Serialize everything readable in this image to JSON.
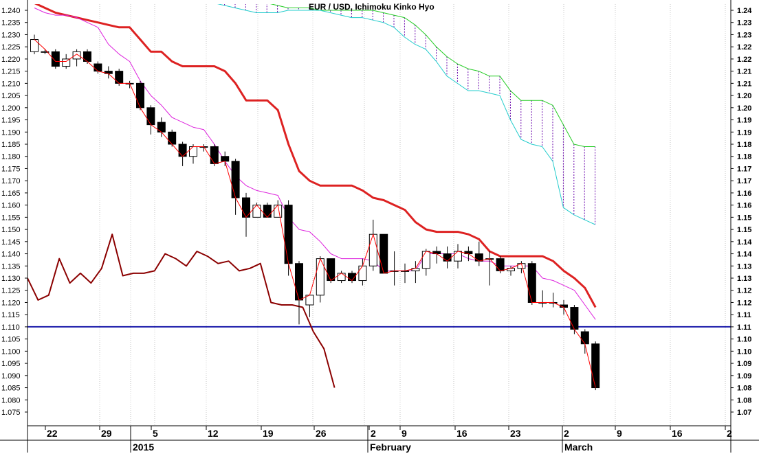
{
  "chart_data": {
    "type": "candlestick",
    "title": "EUR / USD, Ichimoku Kinko Hyo",
    "ylim": [
      1.07,
      1.245
    ],
    "y_left_ticks": [
      "1.075",
      "1.080",
      "1.085",
      "1.090",
      "1.095",
      "1.100",
      "1.105",
      "1.110",
      "1.115",
      "1.120",
      "1.125",
      "1.130",
      "1.135",
      "1.140",
      "1.145",
      "1.150",
      "1.155",
      "1.160",
      "1.165",
      "1.170",
      "1.175",
      "1.180",
      "1.185",
      "1.190",
      "1.195",
      "1.200",
      "1.205",
      "1.210",
      "1.215",
      "1.220",
      "1.225",
      "1.230",
      "1.235",
      "1.240"
    ],
    "y_right_ticks": [
      "1.07",
      "1.08",
      "1.08",
      "1.09",
      "1.09",
      "1.10",
      "1.10",
      "1.11",
      "1.11",
      "1.12",
      "1.12",
      "1.13",
      "1.13",
      "1.14",
      "1.14",
      "1.15",
      "1.15",
      "1.16",
      "1.16",
      "1.17",
      "1.17",
      "1.18",
      "1.18",
      "1.19",
      "1.19",
      "1.20",
      "1.20",
      "1.21",
      "1.21",
      "1.22",
      "1.22",
      "1.23",
      "1.23",
      "1.24"
    ],
    "x_ticks": [
      "22",
      "29",
      "5",
      "12",
      "19",
      "26",
      "2",
      "9",
      "16",
      "23",
      "2",
      "9",
      "16",
      "2"
    ],
    "x_month_labels": [
      "2015",
      "February",
      "March"
    ],
    "horizontal_line": 1.11,
    "grid": true,
    "candles": [
      {
        "o": 1.223,
        "h": 1.23,
        "l": 1.222,
        "c": 1.228
      },
      {
        "o": 1.223,
        "h": 1.224,
        "l": 1.222,
        "c": 1.223
      },
      {
        "o": 1.223,
        "h": 1.224,
        "l": 1.216,
        "c": 1.217
      },
      {
        "o": 1.217,
        "h": 1.222,
        "l": 1.216,
        "c": 1.22
      },
      {
        "o": 1.22,
        "h": 1.224,
        "l": 1.217,
        "c": 1.223
      },
      {
        "o": 1.223,
        "h": 1.224,
        "l": 1.218,
        "c": 1.219
      },
      {
        "o": 1.218,
        "h": 1.219,
        "l": 1.214,
        "c": 1.215
      },
      {
        "o": 1.215,
        "h": 1.217,
        "l": 1.212,
        "c": 1.214
      },
      {
        "o": 1.215,
        "h": 1.216,
        "l": 1.209,
        "c": 1.21
      },
      {
        "o": 1.21,
        "h": 1.211,
        "l": 1.208,
        "c": 1.21
      },
      {
        "o": 1.21,
        "h": 1.211,
        "l": 1.199,
        "c": 1.2
      },
      {
        "o": 1.2,
        "h": 1.201,
        "l": 1.189,
        "c": 1.193
      },
      {
        "o": 1.194,
        "h": 1.196,
        "l": 1.188,
        "c": 1.19
      },
      {
        "o": 1.19,
        "h": 1.191,
        "l": 1.184,
        "c": 1.185
      },
      {
        "o": 1.185,
        "h": 1.186,
        "l": 1.176,
        "c": 1.18
      },
      {
        "o": 1.18,
        "h": 1.185,
        "l": 1.177,
        "c": 1.184
      },
      {
        "o": 1.184,
        "h": 1.185,
        "l": 1.182,
        "c": 1.184
      },
      {
        "o": 1.184,
        "h": 1.185,
        "l": 1.176,
        "c": 1.177
      },
      {
        "o": 1.18,
        "h": 1.182,
        "l": 1.176,
        "c": 1.178
      },
      {
        "o": 1.178,
        "h": 1.179,
        "l": 1.156,
        "c": 1.163
      },
      {
        "o": 1.163,
        "h": 1.165,
        "l": 1.147,
        "c": 1.155
      },
      {
        "o": 1.155,
        "h": 1.161,
        "l": 1.155,
        "c": 1.16
      },
      {
        "o": 1.16,
        "h": 1.161,
        "l": 1.155,
        "c": 1.155
      },
      {
        "o": 1.155,
        "h": 1.162,
        "l": 1.155,
        "c": 1.16
      },
      {
        "o": 1.16,
        "h": 1.162,
        "l": 1.131,
        "c": 1.136
      },
      {
        "o": 1.136,
        "h": 1.137,
        "l": 1.111,
        "c": 1.121
      },
      {
        "o": 1.119,
        "h": 1.123,
        "l": 1.114,
        "c": 1.123
      },
      {
        "o": 1.123,
        "h": 1.139,
        "l": 1.12,
        "c": 1.138
      },
      {
        "o": 1.138,
        "h": 1.138,
        "l": 1.128,
        "c": 1.129
      },
      {
        "o": 1.129,
        "h": 1.133,
        "l": 1.128,
        "c": 1.132
      },
      {
        "o": 1.132,
        "h": 1.133,
        "l": 1.128,
        "c": 1.129
      },
      {
        "o": 1.129,
        "h": 1.138,
        "l": 1.127,
        "c": 1.135
      },
      {
        "o": 1.135,
        "h": 1.154,
        "l": 1.133,
        "c": 1.148
      },
      {
        "o": 1.148,
        "h": 1.148,
        "l": 1.132,
        "c": 1.132
      },
      {
        "o": 1.133,
        "h": 1.141,
        "l": 1.127,
        "c": 1.133
      },
      {
        "o": 1.133,
        "h": 1.136,
        "l": 1.128,
        "c": 1.133
      },
      {
        "o": 1.133,
        "h": 1.137,
        "l": 1.128,
        "c": 1.134
      },
      {
        "o": 1.134,
        "h": 1.142,
        "l": 1.131,
        "c": 1.141
      },
      {
        "o": 1.141,
        "h": 1.143,
        "l": 1.136,
        "c": 1.14
      },
      {
        "o": 1.14,
        "h": 1.143,
        "l": 1.134,
        "c": 1.137
      },
      {
        "o": 1.137,
        "h": 1.144,
        "l": 1.134,
        "c": 1.141
      },
      {
        "o": 1.141,
        "h": 1.143,
        "l": 1.137,
        "c": 1.14
      },
      {
        "o": 1.14,
        "h": 1.145,
        "l": 1.135,
        "c": 1.137
      },
      {
        "o": 1.138,
        "h": 1.141,
        "l": 1.127,
        "c": 1.138
      },
      {
        "o": 1.138,
        "h": 1.139,
        "l": 1.132,
        "c": 1.133
      },
      {
        "o": 1.133,
        "h": 1.135,
        "l": 1.131,
        "c": 1.134
      },
      {
        "o": 1.134,
        "h": 1.137,
        "l": 1.132,
        "c": 1.136
      },
      {
        "o": 1.136,
        "h": 1.137,
        "l": 1.119,
        "c": 1.12
      },
      {
        "o": 1.12,
        "h": 1.125,
        "l": 1.118,
        "c": 1.12
      },
      {
        "o": 1.12,
        "h": 1.124,
        "l": 1.118,
        "c": 1.12
      },
      {
        "o": 1.119,
        "h": 1.121,
        "l": 1.115,
        "c": 1.118
      },
      {
        "o": 1.118,
        "h": 1.119,
        "l": 1.107,
        "c": 1.109
      },
      {
        "o": 1.108,
        "h": 1.109,
        "l": 1.099,
        "c": 1.103
      },
      {
        "o": 1.103,
        "h": 1.104,
        "l": 1.084,
        "c": 1.085
      }
    ],
    "series": [
      {
        "name": "",
        "color": "#ff0000",
        "values": [
          1.228,
          1.224,
          1.219,
          1.219,
          1.222,
          1.219,
          1.215,
          1.214,
          1.21,
          1.21,
          1.2,
          1.193,
          1.19,
          1.185,
          1.18,
          1.184,
          1.184,
          1.177,
          1.178,
          1.163,
          1.155,
          1.16,
          1.155,
          1.16,
          1.136,
          1.121,
          1.123,
          1.138,
          1.129,
          1.132,
          1.129,
          1.135,
          1.148,
          1.132,
          1.133,
          1.133,
          1.134,
          1.141,
          1.14,
          1.137,
          1.141,
          1.14,
          1.137,
          1.138,
          1.133,
          1.134,
          1.136,
          1.12,
          1.12,
          1.12,
          1.118,
          1.109,
          1.103,
          1.085
        ]
      },
      {
        "name": "",
        "color": "#dd2222",
        "values": [
          1.243,
          1.241,
          1.239,
          1.238,
          1.237,
          1.236,
          1.235,
          1.234,
          1.233,
          1.233,
          1.228,
          1.223,
          1.223,
          1.219,
          1.217,
          1.217,
          1.217,
          1.217,
          1.215,
          1.21,
          1.203,
          1.203,
          1.203,
          1.199,
          1.185,
          1.174,
          1.17,
          1.168,
          1.168,
          1.168,
          1.168,
          1.166,
          1.163,
          1.162,
          1.16,
          1.158,
          1.153,
          1.15,
          1.149,
          1.149,
          1.149,
          1.148,
          1.146,
          1.141,
          1.139,
          1.139,
          1.139,
          1.139,
          1.139,
          1.137,
          1.133,
          1.13,
          1.126,
          1.118
        ]
      },
      {
        "name": "",
        "color": "#dd22dd",
        "values": [
          1.241,
          1.239,
          1.238,
          1.238,
          1.237,
          1.235,
          1.233,
          1.226,
          1.222,
          1.219,
          1.211,
          1.205,
          1.201,
          1.196,
          1.194,
          1.192,
          1.191,
          1.185,
          1.178,
          1.172,
          1.168,
          1.166,
          1.165,
          1.164,
          1.155,
          1.15,
          1.149,
          1.145,
          1.14,
          1.138,
          1.138,
          1.138,
          1.137,
          1.133,
          1.133,
          1.133,
          1.133,
          1.14,
          1.14,
          1.14,
          1.14,
          1.138,
          1.137,
          1.137,
          1.135,
          1.135,
          1.135,
          1.135,
          1.13,
          1.129,
          1.127,
          1.125,
          1.119,
          1.113
        ]
      },
      {
        "name": "",
        "color": "#8b0000",
        "values": [
          1.13,
          1.121,
          1.123,
          1.138,
          1.128,
          1.132,
          1.128,
          1.134,
          1.148,
          1.131,
          1.132,
          1.132,
          1.133,
          1.14,
          1.138,
          1.135,
          1.141,
          1.139,
          1.136,
          1.137,
          1.133,
          1.134,
          1.136,
          1.12,
          1.119,
          1.119,
          1.118,
          1.108,
          1.101,
          1.085
        ]
      },
      {
        "name": "",
        "color": "#22cc22",
        "values": [
          1.252,
          1.25,
          1.248,
          1.247,
          1.246,
          1.245,
          1.245,
          1.244,
          1.243,
          1.242,
          1.241,
          1.241,
          1.241,
          1.24,
          1.24,
          1.24,
          1.24,
          1.24,
          1.24,
          1.239,
          1.238,
          1.237,
          1.234,
          1.23,
          1.225,
          1.221,
          1.218,
          1.216,
          1.215,
          1.213,
          1.213,
          1.207,
          1.203,
          1.203,
          1.203,
          1.201,
          1.193,
          1.185,
          1.184,
          1.184
        ]
      },
      {
        "name": "",
        "color": "#22cccc",
        "values": [
          1.247,
          1.246,
          1.244,
          1.243,
          1.242,
          1.241,
          1.24,
          1.239,
          1.239,
          1.239,
          1.24,
          1.24,
          1.24,
          1.24,
          1.239,
          1.238,
          1.237,
          1.237,
          1.236,
          1.235,
          1.233,
          1.229,
          1.226,
          1.224,
          1.219,
          1.213,
          1.21,
          1.207,
          1.207,
          1.206,
          1.205,
          1.195,
          1.187,
          1.185,
          1.184,
          1.178,
          1.159,
          1.156,
          1.154,
          1.152
        ]
      }
    ]
  }
}
